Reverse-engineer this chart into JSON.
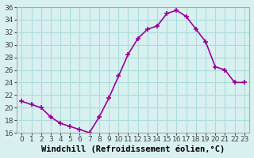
{
  "x": [
    0,
    1,
    2,
    3,
    4,
    5,
    6,
    7,
    8,
    9,
    10,
    11,
    12,
    13,
    14,
    15,
    16,
    17,
    18,
    19,
    20,
    21,
    22,
    23
  ],
  "y": [
    21,
    20.5,
    20,
    18.5,
    17.5,
    17,
    16.5,
    16,
    18.5,
    21.5,
    25,
    28.5,
    31,
    32.5,
    33,
    35,
    35.5,
    34.5,
    32.5,
    30.5,
    26.5,
    26,
    24,
    24
  ],
  "line_color": "#990099",
  "marker": "+",
  "bg_color": "#d9f0f0",
  "grid_color": "#aadddd",
  "xlabel": "Windchill (Refroidissement éolien,°C)",
  "ylim": [
    16,
    36
  ],
  "xlim": [
    -0.5,
    23.5
  ],
  "yticks": [
    16,
    18,
    20,
    22,
    24,
    26,
    28,
    30,
    32,
    34,
    36
  ],
  "xticks": [
    0,
    1,
    2,
    3,
    4,
    5,
    6,
    7,
    8,
    9,
    10,
    11,
    12,
    13,
    14,
    15,
    16,
    17,
    18,
    19,
    20,
    21,
    22,
    23
  ],
  "tick_fontsize": 6.5,
  "xlabel_fontsize": 7.5
}
